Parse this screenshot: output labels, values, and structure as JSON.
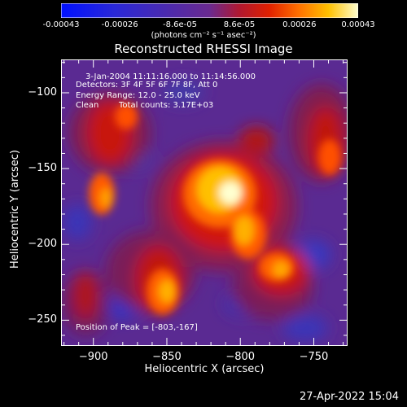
{
  "colorbar": {
    "ticks": [
      "-0.00043",
      "-0.00026",
      "-8.6e-05",
      "8.6e-05",
      "0.00026",
      "0.00043"
    ],
    "tick_values": [
      -0.00043,
      -0.00026,
      -8.6e-05,
      8.6e-05,
      0.00026,
      0.00043
    ],
    "unit_label": "(photons cm⁻² s⁻¹ asec⁻²)",
    "range": [
      -0.00043,
      0.00043
    ]
  },
  "chart_data": {
    "type": "heatmap",
    "title": "Reconstructed RHESSI Image",
    "xlabel": "Heliocentric X (arcsec)",
    "ylabel": "Heliocentric Y (arcsec)",
    "xlim": [
      -922,
      -727
    ],
    "ylim": [
      -267,
      -78
    ],
    "xticks": [
      -900,
      -850,
      -800,
      -750
    ],
    "yticks": [
      -100,
      -150,
      -200,
      -250
    ],
    "xtick_labels": [
      "−900",
      "−850",
      "−800",
      "−750"
    ],
    "ytick_labels": [
      "−100",
      "−150",
      "−200",
      "−250"
    ],
    "peak": {
      "x": -803,
      "y": -167
    },
    "annotations": {
      "time_range": "3-Jan-2004 11:11:16.000 to 11:14:56.000",
      "detectors": "Detectors: 3F 4F 5F 6F 7F 8F, Att 0",
      "energy": "Energy Range: 12.0 - 25.0 keV",
      "clean": "Clean",
      "counts": "Total counts: 3.17E+03",
      "peak_text": "Position of Peak = [-803,-167]"
    }
  },
  "footer": {
    "timestamp": "27-Apr-2022 15:04"
  }
}
